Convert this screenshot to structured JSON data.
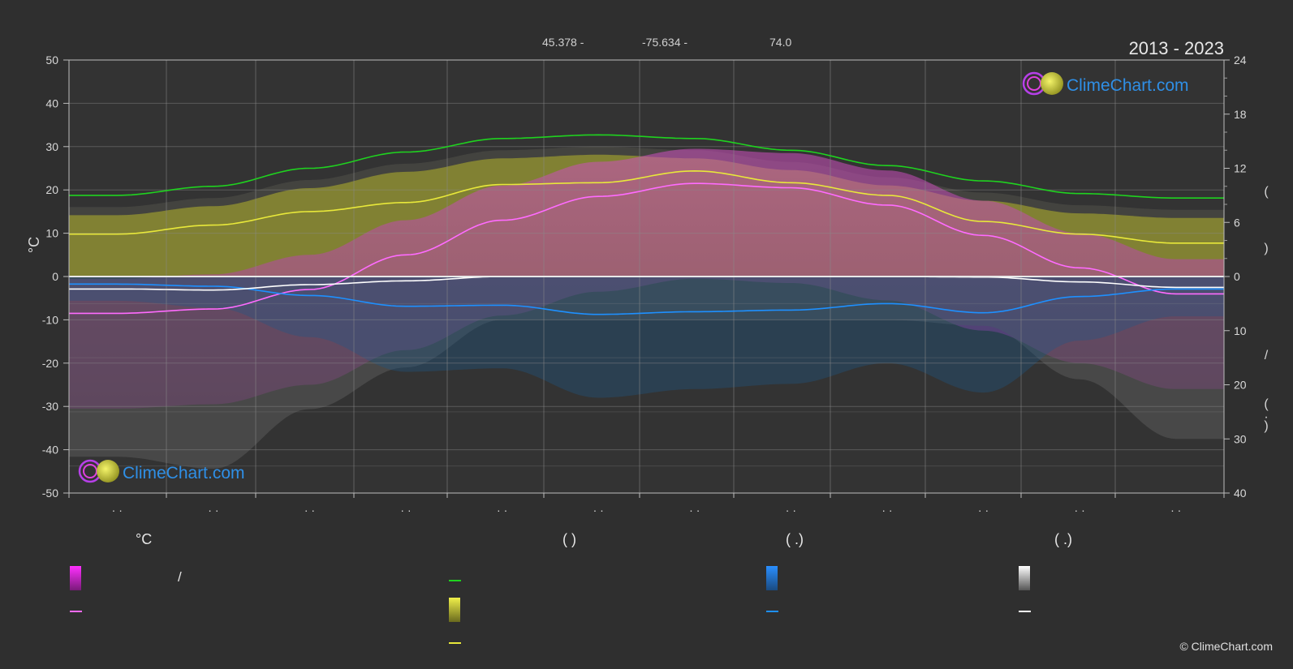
{
  "header": {
    "lat": "45.378 -",
    "lon": "-75.634 -",
    "elev": "74.0",
    "period": "2013 - 2023"
  },
  "logo": {
    "text": "ClimeChart.com"
  },
  "axes": {
    "left_label": "°C",
    "left_ticks": [
      "50",
      "40",
      "30",
      "20",
      "10",
      "0",
      "-10",
      "-20",
      "-30",
      "-40",
      "-50"
    ],
    "right_ticks_top": [
      "24",
      "18",
      "12",
      "6",
      "0"
    ],
    "right_ticks_bottom": [
      "10",
      "20",
      "30",
      "40"
    ],
    "right_marks": [
      "(",
      ")",
      "/",
      "(",
      "·",
      ")"
    ],
    "x_labels": [
      "· ·",
      "· ·",
      "· ·",
      "· ·",
      "· ·",
      "· ·",
      "· ·",
      "· ·",
      "· ·",
      "· ·",
      "· ·",
      "· ·"
    ]
  },
  "legend": {
    "temp_head": "°C",
    "sun_head": "(          )",
    "rain_head": "(   .)",
    "snow_head": "(   .)",
    "slash": "/"
  },
  "colors": {
    "daylight": "#1fd21f",
    "sunshine": "#e8e83a",
    "max_temp": "#ff6bff",
    "rain": "#1e90ff",
    "snow": "#ffffff",
    "band_temp": "#e040e0",
    "band_sun": "#b5b52a"
  },
  "copyright": "© ClimeChart.com",
  "chart_data": {
    "type": "area",
    "period": "2013 - 2023",
    "x_months": [
      1,
      2,
      3,
      4,
      5,
      6,
      7,
      8,
      9,
      10,
      11,
      12
    ],
    "y_left_range": [
      -50,
      50
    ],
    "y_right_hours_range": [
      0,
      24
    ],
    "y_right_mm_range": [
      0,
      40
    ],
    "series": [
      {
        "axis": "hours",
        "values": [
          9.0,
          10.0,
          12.0,
          13.8,
          15.3,
          15.7,
          15.3,
          14.0,
          12.3,
          10.6,
          9.2,
          8.7
        ]
      },
      {
        "axis": "hours",
        "values": [
          4.7,
          5.7,
          7.2,
          8.2,
          10.2,
          10.4,
          11.7,
          10.4,
          9.0,
          6.1,
          4.7,
          3.7
        ]
      },
      {
        "axis": "temp",
        "values": [
          -8.5,
          -7.5,
          -3.0,
          5.0,
          13.0,
          18.5,
          21.5,
          20.5,
          16.5,
          9.5,
          2.0,
          -4.0
        ]
      },
      {
        "axis": "mm",
        "values": [
          1.4,
          1.8,
          3.5,
          5.5,
          5.3,
          7.0,
          6.5,
          6.2,
          5.0,
          6.7,
          3.7,
          2.3
        ]
      },
      {
        "axis": "mm",
        "values": [
          2.3,
          2.5,
          1.5,
          0.8,
          0.0,
          0.0,
          0.0,
          0.0,
          0.0,
          0.1,
          1.0,
          2.0
        ]
      }
    ]
  }
}
